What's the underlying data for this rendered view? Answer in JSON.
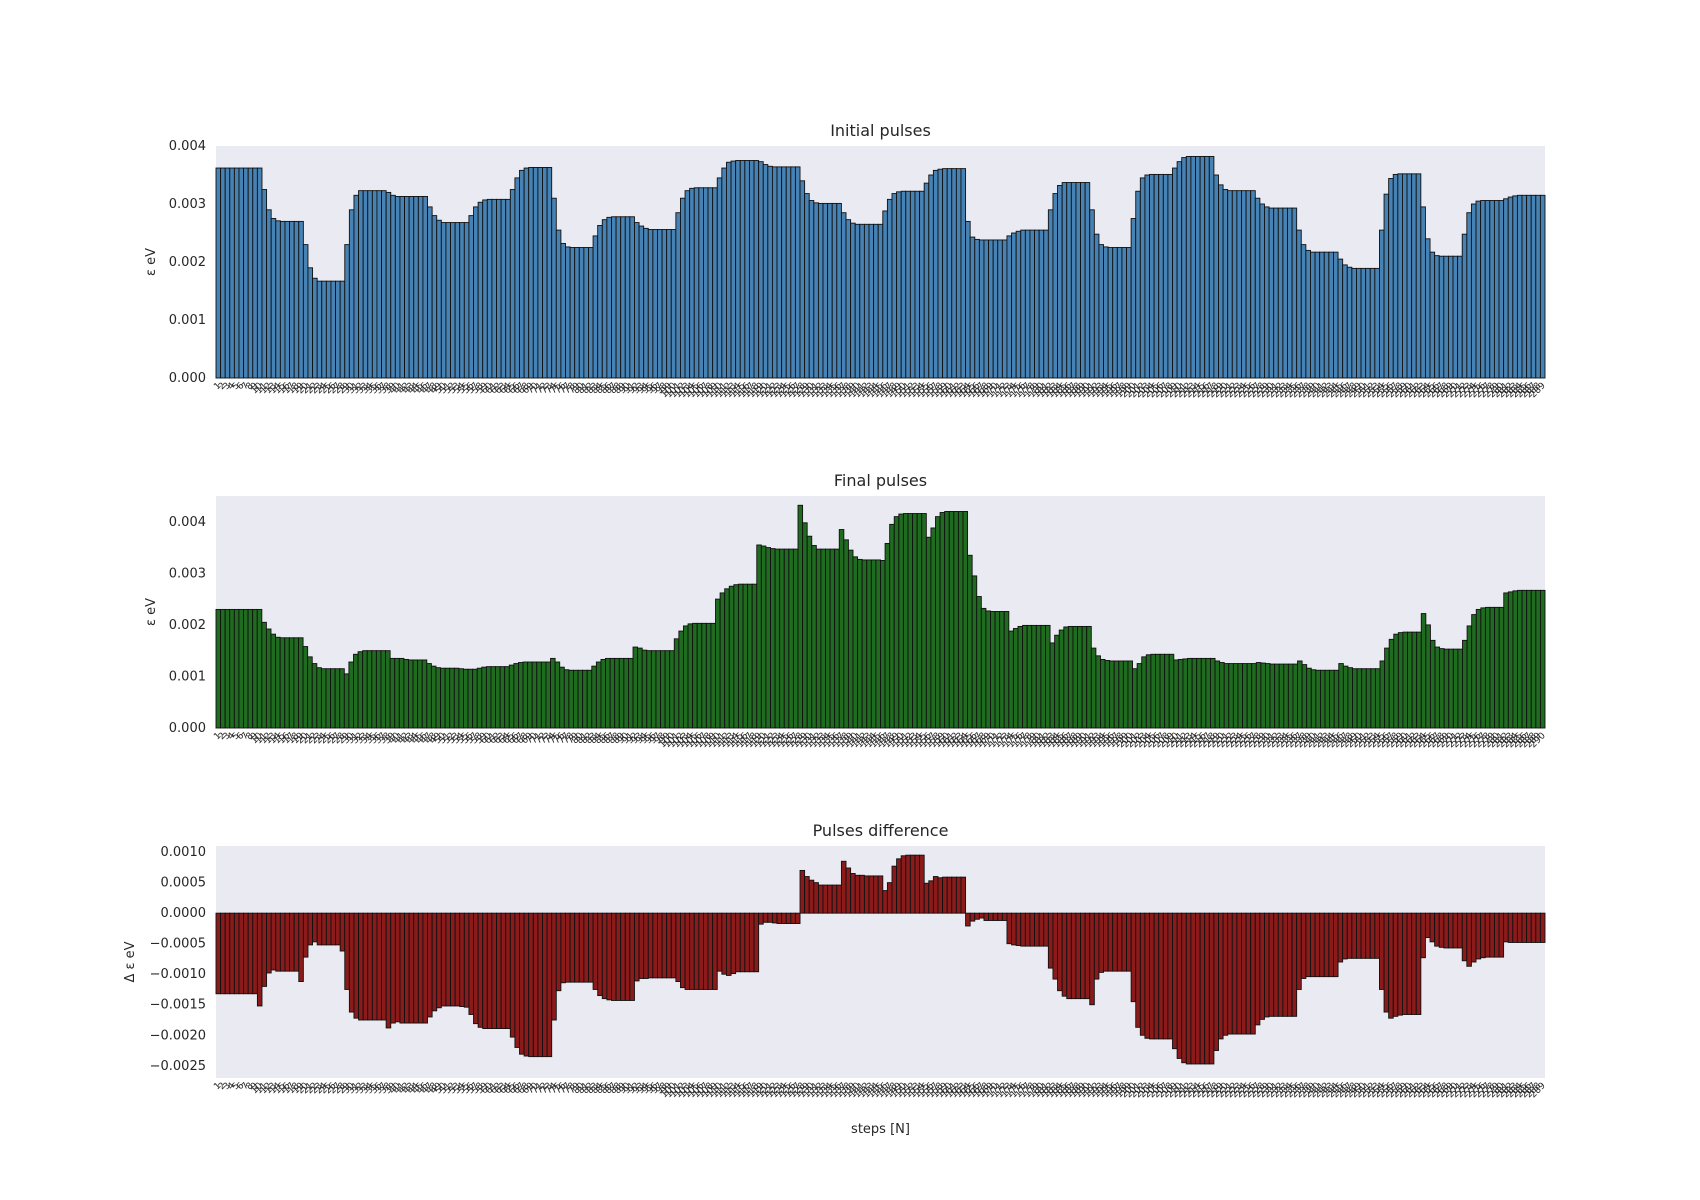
{
  "chart_data": [
    {
      "type": "bar",
      "title": "Initial pulses",
      "ylabel": "ε eV",
      "xlabel": "",
      "ylim": [
        0,
        0.004
      ],
      "yticks": [
        "0.000",
        "0.001",
        "0.002",
        "0.003",
        "0.004"
      ],
      "grid": false,
      "colors": {
        "bar": "#4682b4",
        "edge": "#111111",
        "background": "#eaeaf2"
      },
      "values": [
        0.00362,
        0.00362,
        0.00362,
        0.00362,
        0.00362,
        0.00362,
        0.00362,
        0.00362,
        0.00362,
        0.00362,
        0.00325,
        0.0029,
        0.00275,
        0.00271,
        0.0027,
        0.0027,
        0.0027,
        0.0027,
        0.0027,
        0.0023,
        0.0019,
        0.00172,
        0.00167,
        0.00167,
        0.00167,
        0.00167,
        0.00167,
        0.00167,
        0.0023,
        0.0029,
        0.00315,
        0.00323,
        0.00323,
        0.00323,
        0.00323,
        0.00323,
        0.00323,
        0.0032,
        0.00315,
        0.00313,
        0.00313,
        0.00313,
        0.00313,
        0.00313,
        0.00313,
        0.00313,
        0.00295,
        0.0028,
        0.00272,
        0.00268,
        0.00268,
        0.00268,
        0.00268,
        0.00268,
        0.00268,
        0.0028,
        0.00295,
        0.00303,
        0.00307,
        0.00308,
        0.00308,
        0.00308,
        0.00308,
        0.00308,
        0.00325,
        0.00345,
        0.00358,
        0.00362,
        0.00363,
        0.00363,
        0.00363,
        0.00363,
        0.00363,
        0.0031,
        0.00255,
        0.00232,
        0.00226,
        0.00225,
        0.00225,
        0.00225,
        0.00225,
        0.00225,
        0.00245,
        0.00263,
        0.00273,
        0.00277,
        0.00278,
        0.00278,
        0.00278,
        0.00278,
        0.00278,
        0.00268,
        0.00262,
        0.00258,
        0.00256,
        0.00256,
        0.00256,
        0.00256,
        0.00256,
        0.00256,
        0.00285,
        0.0031,
        0.00323,
        0.00327,
        0.00328,
        0.00328,
        0.00328,
        0.00328,
        0.00328,
        0.00345,
        0.00362,
        0.00372,
        0.00374,
        0.00375,
        0.00375,
        0.00375,
        0.00375,
        0.00375,
        0.00373,
        0.00368,
        0.00365,
        0.00364,
        0.00364,
        0.00364,
        0.00364,
        0.00364,
        0.00364,
        0.0034,
        0.00318,
        0.00306,
        0.00302,
        0.00301,
        0.00301,
        0.00301,
        0.00301,
        0.00301,
        0.00285,
        0.00273,
        0.00267,
        0.00265,
        0.00265,
        0.00265,
        0.00265,
        0.00265,
        0.00265,
        0.00288,
        0.00308,
        0.00318,
        0.00321,
        0.00322,
        0.00322,
        0.00322,
        0.00322,
        0.00322,
        0.00336,
        0.0035,
        0.00358,
        0.0036,
        0.00361,
        0.00361,
        0.00361,
        0.00361,
        0.00361,
        0.0027,
        0.00243,
        0.00239,
        0.00238,
        0.00238,
        0.00238,
        0.00238,
        0.00238,
        0.00238,
        0.00245,
        0.0025,
        0.00253,
        0.00255,
        0.00255,
        0.00255,
        0.00255,
        0.00255,
        0.00255,
        0.0029,
        0.00318,
        0.00332,
        0.00337,
        0.00337,
        0.00337,
        0.00337,
        0.00337,
        0.00337,
        0.0029,
        0.00248,
        0.0023,
        0.00226,
        0.00225,
        0.00225,
        0.00225,
        0.00225,
        0.00225,
        0.00275,
        0.00322,
        0.00345,
        0.0035,
        0.00351,
        0.00351,
        0.00351,
        0.00351,
        0.00351,
        0.00362,
        0.00373,
        0.0038,
        0.00382,
        0.00382,
        0.00382,
        0.00382,
        0.00382,
        0.00382,
        0.0035,
        0.00333,
        0.00325,
        0.00323,
        0.00323,
        0.00323,
        0.00323,
        0.00323,
        0.00323,
        0.0031,
        0.003,
        0.00295,
        0.00293,
        0.00293,
        0.00293,
        0.00293,
        0.00293,
        0.00293,
        0.00255,
        0.0023,
        0.0022,
        0.00217,
        0.00217,
        0.00217,
        0.00217,
        0.00217,
        0.00217,
        0.00205,
        0.00195,
        0.00191,
        0.00189,
        0.00189,
        0.00189,
        0.00189,
        0.00189,
        0.00189,
        0.00255,
        0.00317,
        0.00344,
        0.00351,
        0.00352,
        0.00352,
        0.00352,
        0.00352,
        0.00352,
        0.00295,
        0.0024,
        0.00217,
        0.00211,
        0.0021,
        0.0021,
        0.0021,
        0.0021,
        0.0021,
        0.00248,
        0.00285,
        0.003,
        0.00305,
        0.00306,
        0.00306,
        0.00306,
        0.00306,
        0.00306,
        0.00309,
        0.00312,
        0.00314,
        0.00315,
        0.00315,
        0.00315,
        0.00315,
        0.00315,
        0.00315
      ]
    },
    {
      "type": "bar",
      "title": "Final pulses",
      "ylabel": "ε eV",
      "xlabel": "",
      "ylim": [
        0,
        0.0045
      ],
      "yticks": [
        "0.000",
        "0.001",
        "0.002",
        "0.003",
        "0.004"
      ],
      "grid": false,
      "colors": {
        "bar": "#1f6b1f",
        "edge": "#111111",
        "background": "#eaeaf2"
      },
      "values": [
        0.0023,
        0.0023,
        0.0023,
        0.0023,
        0.0023,
        0.0023,
        0.0023,
        0.0023,
        0.0023,
        0.0023,
        0.00205,
        0.00192,
        0.00182,
        0.00176,
        0.00175,
        0.00175,
        0.00175,
        0.00175,
        0.00175,
        0.00158,
        0.00138,
        0.00125,
        0.00117,
        0.00115,
        0.00115,
        0.00115,
        0.00115,
        0.00115,
        0.00105,
        0.00128,
        0.00143,
        0.00148,
        0.0015,
        0.0015,
        0.0015,
        0.0015,
        0.0015,
        0.0015,
        0.00135,
        0.00135,
        0.00135,
        0.00133,
        0.00132,
        0.00132,
        0.00132,
        0.00132,
        0.00125,
        0.0012,
        0.00117,
        0.00116,
        0.00116,
        0.00116,
        0.00116,
        0.00115,
        0.00114,
        0.00114,
        0.00114,
        0.00116,
        0.00118,
        0.00119,
        0.00119,
        0.00119,
        0.00119,
        0.00119,
        0.00122,
        0.00125,
        0.00127,
        0.00128,
        0.00128,
        0.00128,
        0.00128,
        0.00128,
        0.00128,
        0.00135,
        0.00128,
        0.00118,
        0.00113,
        0.00112,
        0.00112,
        0.00112,
        0.00112,
        0.00112,
        0.0012,
        0.00128,
        0.00133,
        0.00135,
        0.00135,
        0.00135,
        0.00135,
        0.00135,
        0.00135,
        0.00157,
        0.00155,
        0.00151,
        0.0015,
        0.0015,
        0.0015,
        0.0015,
        0.0015,
        0.0015,
        0.00173,
        0.00188,
        0.00198,
        0.00202,
        0.00203,
        0.00203,
        0.00203,
        0.00203,
        0.00203,
        0.0025,
        0.00262,
        0.0027,
        0.00275,
        0.00278,
        0.00279,
        0.00279,
        0.00279,
        0.00279,
        0.00355,
        0.00353,
        0.0035,
        0.00348,
        0.00347,
        0.00347,
        0.00347,
        0.00347,
        0.00347,
        0.00432,
        0.00398,
        0.00372,
        0.00354,
        0.00347,
        0.00347,
        0.00347,
        0.00347,
        0.00347,
        0.00385,
        0.00365,
        0.00345,
        0.00332,
        0.00327,
        0.00326,
        0.00326,
        0.00326,
        0.00326,
        0.00325,
        0.00358,
        0.00395,
        0.0041,
        0.00415,
        0.00416,
        0.00416,
        0.00416,
        0.00416,
        0.00416,
        0.0037,
        0.00388,
        0.0041,
        0.00418,
        0.0042,
        0.0042,
        0.0042,
        0.0042,
        0.0042,
        0.00335,
        0.00295,
        0.00255,
        0.00232,
        0.00227,
        0.00226,
        0.00226,
        0.00226,
        0.00226,
        0.00188,
        0.00193,
        0.00197,
        0.00199,
        0.00199,
        0.00199,
        0.00199,
        0.00199,
        0.00199,
        0.00165,
        0.0018,
        0.0019,
        0.00196,
        0.00197,
        0.00197,
        0.00197,
        0.00197,
        0.00197,
        0.00155,
        0.0014,
        0.00133,
        0.00131,
        0.0013,
        0.0013,
        0.0013,
        0.0013,
        0.0013,
        0.00115,
        0.00125,
        0.00138,
        0.00142,
        0.00143,
        0.00143,
        0.00143,
        0.00143,
        0.00143,
        0.00132,
        0.00133,
        0.00134,
        0.00135,
        0.00135,
        0.00135,
        0.00135,
        0.00135,
        0.00135,
        0.0013,
        0.00127,
        0.00125,
        0.00125,
        0.00125,
        0.00125,
        0.00125,
        0.00125,
        0.00125,
        0.00127,
        0.00126,
        0.00125,
        0.00124,
        0.00124,
        0.00124,
        0.00124,
        0.00124,
        0.00124,
        0.0013,
        0.00123,
        0.00116,
        0.00113,
        0.00112,
        0.00112,
        0.00112,
        0.00112,
        0.00112,
        0.00125,
        0.0012,
        0.00117,
        0.00115,
        0.00115,
        0.00115,
        0.00115,
        0.00115,
        0.00115,
        0.0013,
        0.00155,
        0.00172,
        0.00182,
        0.00185,
        0.00186,
        0.00186,
        0.00186,
        0.00186,
        0.00222,
        0.002,
        0.0017,
        0.00157,
        0.00154,
        0.00153,
        0.00153,
        0.00153,
        0.00153,
        0.0017,
        0.00198,
        0.0022,
        0.0023,
        0.00233,
        0.00234,
        0.00234,
        0.00234,
        0.00234,
        0.00262,
        0.00264,
        0.00266,
        0.00267,
        0.00267,
        0.00267,
        0.00267,
        0.00267,
        0.00267
      ]
    },
    {
      "type": "bar",
      "title": "Pulses difference",
      "ylabel": "Δ ε eV",
      "xlabel": "steps [N]",
      "ylim": [
        -0.0027,
        0.0011
      ],
      "yticks": [
        "−0.0025",
        "−0.0020",
        "−0.0015",
        "−0.0010",
        "−0.0005",
        "0.0000",
        "0.0005",
        "0.0010"
      ],
      "grid": false,
      "colors": {
        "bar": "#8b1a1a",
        "edge": "#111111",
        "background": "#eaeaf2"
      },
      "values": [
        -0.00132,
        -0.00132,
        -0.00132,
        -0.00132,
        -0.00132,
        -0.00132,
        -0.00132,
        -0.00132,
        -0.00132,
        -0.00152,
        -0.0012,
        -0.00098,
        -0.00093,
        -0.00095,
        -0.00095,
        -0.00095,
        -0.00095,
        -0.00095,
        -0.00112,
        -0.00072,
        -0.00052,
        -0.00047,
        -0.00052,
        -0.00052,
        -0.00052,
        -0.00052,
        -0.00052,
        -0.00062,
        -0.00125,
        -0.00162,
        -0.00172,
        -0.00175,
        -0.00175,
        -0.00175,
        -0.00175,
        -0.00175,
        -0.00175,
        -0.00188,
        -0.0018,
        -0.00178,
        -0.0018,
        -0.0018,
        -0.0018,
        -0.0018,
        -0.0018,
        -0.0018,
        -0.0017,
        -0.0016,
        -0.00155,
        -0.00152,
        -0.00152,
        -0.00152,
        -0.00152,
        -0.00153,
        -0.00154,
        -0.00166,
        -0.00181,
        -0.00187,
        -0.00189,
        -0.00189,
        -0.00189,
        -0.00189,
        -0.00189,
        -0.00189,
        -0.00203,
        -0.0022,
        -0.00231,
        -0.00234,
        -0.00235,
        -0.00235,
        -0.00235,
        -0.00235,
        -0.00235,
        -0.00175,
        -0.00127,
        -0.00114,
        -0.00113,
        -0.00113,
        -0.00113,
        -0.00113,
        -0.00113,
        -0.00113,
        -0.00125,
        -0.00135,
        -0.0014,
        -0.00142,
        -0.00143,
        -0.00143,
        -0.00143,
        -0.00143,
        -0.00143,
        -0.00111,
        -0.00107,
        -0.00107,
        -0.00106,
        -0.00106,
        -0.00106,
        -0.00106,
        -0.00106,
        -0.00106,
        -0.00112,
        -0.00122,
        -0.00125,
        -0.00125,
        -0.00125,
        -0.00125,
        -0.00125,
        -0.00125,
        -0.00125,
        -0.00095,
        -0.001,
        -0.00102,
        -0.00099,
        -0.00096,
        -0.00096,
        -0.00096,
        -0.00096,
        -0.00096,
        -0.00018,
        -0.00015,
        -0.00015,
        -0.00016,
        -0.00017,
        -0.00017,
        -0.00017,
        -0.00017,
        -0.00017,
        0.0007,
        0.0006,
        0.00054,
        0.0005,
        0.00046,
        0.00046,
        0.00046,
        0.00046,
        0.00046,
        0.00085,
        0.00074,
        0.00065,
        0.00062,
        0.00062,
        0.00061,
        0.00061,
        0.00061,
        0.00061,
        0.00037,
        0.0005,
        0.00077,
        0.00089,
        0.00094,
        0.00095,
        0.00095,
        0.00095,
        0.00095,
        0.00049,
        0.00053,
        0.0006,
        0.00058,
        0.00059,
        0.00059,
        0.00059,
        0.00059,
        0.00059,
        -0.00021,
        -0.00013,
        -0.0001,
        -8e-05,
        -0.00012,
        -0.00012,
        -0.00012,
        -0.00012,
        -0.00012,
        -0.0005,
        -0.00052,
        -0.00053,
        -0.00054,
        -0.00054,
        -0.00054,
        -0.00054,
        -0.00054,
        -0.00054,
        -0.0009,
        -0.00108,
        -0.00127,
        -0.00136,
        -0.0014,
        -0.0014,
        -0.0014,
        -0.0014,
        -0.0014,
        -0.0015,
        -0.00108,
        -0.00097,
        -0.00095,
        -0.00095,
        -0.00095,
        -0.00095,
        -0.00095,
        -0.00095,
        -0.00145,
        -0.00187,
        -0.002,
        -0.00205,
        -0.00206,
        -0.00206,
        -0.00206,
        -0.00206,
        -0.00206,
        -0.00222,
        -0.00238,
        -0.00245,
        -0.00247,
        -0.00247,
        -0.00247,
        -0.00247,
        -0.00247,
        -0.00247,
        -0.00225,
        -0.00206,
        -0.002,
        -0.00198,
        -0.00198,
        -0.00198,
        -0.00198,
        -0.00198,
        -0.00198,
        -0.00183,
        -0.00174,
        -0.0017,
        -0.00169,
        -0.00169,
        -0.00169,
        -0.00169,
        -0.00169,
        -0.00169,
        -0.00125,
        -0.00107,
        -0.00104,
        -0.00104,
        -0.00104,
        -0.00104,
        -0.00104,
        -0.00104,
        -0.00104,
        -0.0008,
        -0.00075,
        -0.00074,
        -0.00074,
        -0.00074,
        -0.00074,
        -0.00074,
        -0.00074,
        -0.00074,
        -0.00125,
        -0.00162,
        -0.00172,
        -0.00169,
        -0.00167,
        -0.00166,
        -0.00166,
        -0.00166,
        -0.00166,
        -0.00073,
        -0.0004,
        -0.00047,
        -0.00054,
        -0.00056,
        -0.00057,
        -0.00057,
        -0.00057,
        -0.00057,
        -0.00078,
        -0.00087,
        -0.0008,
        -0.00075,
        -0.00073,
        -0.00072,
        -0.00072,
        -0.00072,
        -0.00072,
        -0.00047,
        -0.00048,
        -0.00048,
        -0.00048,
        -0.00048,
        -0.00048,
        -0.00048,
        -0.00048,
        -0.00048
      ]
    }
  ]
}
